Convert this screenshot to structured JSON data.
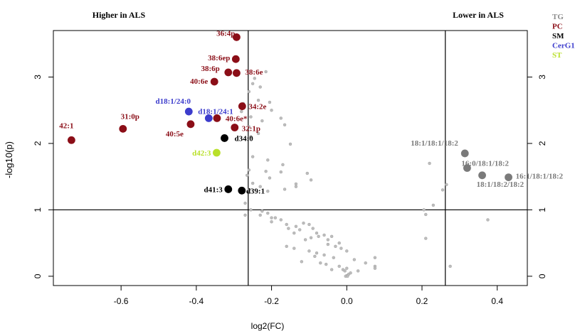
{
  "chart_data": {
    "type": "scatter",
    "title": "",
    "xlabel": "log2(FC)",
    "ylabel": "-log10(p)",
    "xlim": [
      -0.78,
      0.48
    ],
    "ylim": [
      -0.14,
      3.7
    ],
    "x_ticks": [
      {
        "v": -0.6,
        "label": "-0.6"
      },
      {
        "v": -0.4,
        "label": "-0.4"
      },
      {
        "v": -0.2,
        "label": "-0.2"
      },
      {
        "v": 0.0,
        "label": "0.0"
      },
      {
        "v": 0.2,
        "label": "0.2"
      },
      {
        "v": 0.4,
        "label": "0.4"
      }
    ],
    "y_ticks": [
      {
        "v": 0,
        "label": "0"
      },
      {
        "v": 1,
        "label": "1"
      },
      {
        "v": 2,
        "label": "2"
      },
      {
        "v": 3,
        "label": "3"
      }
    ],
    "thresholds": {
      "vertical": [
        -0.262,
        0.262
      ],
      "horizontal": [
        1.0
      ]
    },
    "region_labels": {
      "left": "Higher in ALS",
      "right": "Lower in ALS"
    },
    "grid": false,
    "legend_position": "top-right outside",
    "legend": [
      {
        "name": "TG",
        "color": "#8c8c8c"
      },
      {
        "name": "PC",
        "color": "#8b0e17"
      },
      {
        "name": "SM",
        "color": "#000000"
      },
      {
        "name": "CerG1",
        "color": "#3c3ccc"
      },
      {
        "name": "ST",
        "color": "#b9e02a"
      }
    ],
    "labeled_points": [
      {
        "x": -0.732,
        "y": 2.05,
        "label": "42:1",
        "class": "PC",
        "color": "#8b0e17"
      },
      {
        "x": -0.595,
        "y": 2.22,
        "label": "31:0p",
        "class": "PC",
        "color": "#8b0e17"
      },
      {
        "x": -0.293,
        "y": 3.6,
        "label": "36:4p",
        "class": "PC",
        "color": "#8b0e17"
      },
      {
        "x": -0.295,
        "y": 3.27,
        "label": "38:6ep",
        "class": "PC",
        "color": "#8b0e17"
      },
      {
        "x": -0.315,
        "y": 3.07,
        "label": "38:6p",
        "class": "PC",
        "color": "#8b0e17"
      },
      {
        "x": -0.293,
        "y": 3.06,
        "label": "38:6e",
        "class": "PC",
        "color": "#8b0e17"
      },
      {
        "x": -0.352,
        "y": 2.93,
        "label": "40:6e",
        "class": "PC",
        "color": "#8b0e17"
      },
      {
        "x": -0.278,
        "y": 2.56,
        "label": "34:2e",
        "class": "PC",
        "color": "#8b0e17"
      },
      {
        "x": -0.345,
        "y": 2.38,
        "label": "40:6e*",
        "class": "PC",
        "color": "#8b0e17"
      },
      {
        "x": -0.415,
        "y": 2.29,
        "label": "40:5e",
        "class": "PC",
        "color": "#8b0e17"
      },
      {
        "x": -0.298,
        "y": 2.24,
        "label": "32:1p",
        "class": "PC",
        "color": "#8b0e17"
      },
      {
        "x": -0.42,
        "y": 2.48,
        "label": "d18:1/24:0",
        "class": "CerG1",
        "color": "#3c3ccc"
      },
      {
        "x": -0.367,
        "y": 2.38,
        "label": "d18:1/24:1",
        "class": "CerG1",
        "color": "#3c3ccc"
      },
      {
        "x": -0.325,
        "y": 2.08,
        "label": "d34:0",
        "class": "SM",
        "color": "#000000"
      },
      {
        "x": -0.315,
        "y": 1.31,
        "label": "d41:3",
        "class": "SM",
        "color": "#000000"
      },
      {
        "x": -0.279,
        "y": 1.29,
        "label": "d39:1",
        "class": "SM",
        "color": "#000000"
      },
      {
        "x": -0.346,
        "y": 1.86,
        "label": "d42:3",
        "class": "ST",
        "color": "#b9e02a"
      },
      {
        "x": 0.314,
        "y": 1.85,
        "label": "18:1/18:1/18:2",
        "class": "TG",
        "color": "#7a7a7a"
      },
      {
        "x": 0.32,
        "y": 1.63,
        "label": "16:0/18:1/18:2",
        "class": "TG",
        "color": "#7a7a7a"
      },
      {
        "x": 0.36,
        "y": 1.52,
        "label": "18:1/18:2/18:2",
        "class": "TG",
        "color": "#7a7a7a"
      },
      {
        "x": 0.43,
        "y": 1.49,
        "label": "16:1/18:1/18:2",
        "class": "TG",
        "color": "#7a7a7a"
      }
    ],
    "background_points": [
      [
        -0.215,
        3.08
      ],
      [
        -0.245,
        2.98
      ],
      [
        -0.25,
        2.9
      ],
      [
        -0.23,
        2.85
      ],
      [
        -0.26,
        2.78
      ],
      [
        -0.235,
        2.65
      ],
      [
        -0.275,
        2.6
      ],
      [
        -0.28,
        2.48
      ],
      [
        -0.255,
        2.4
      ],
      [
        -0.225,
        2.34
      ],
      [
        -0.26,
        2.25
      ],
      [
        -0.235,
        2.15
      ],
      [
        -0.255,
        2.1
      ],
      [
        -0.205,
        2.62
      ],
      [
        -0.2,
        2.5
      ],
      [
        -0.175,
        2.38
      ],
      [
        -0.165,
        2.28
      ],
      [
        -0.15,
        1.99
      ],
      [
        -0.17,
        1.68
      ],
      [
        -0.21,
        1.75
      ],
      [
        -0.25,
        1.8
      ],
      [
        -0.26,
        1.6
      ],
      [
        -0.265,
        1.52
      ],
      [
        -0.215,
        1.58
      ],
      [
        -0.175,
        1.57
      ],
      [
        -0.105,
        1.55
      ],
      [
        -0.095,
        1.45
      ],
      [
        -0.205,
        1.48
      ],
      [
        -0.135,
        1.39
      ],
      [
        -0.135,
        1.35
      ],
      [
        -0.25,
        1.4
      ],
      [
        -0.26,
        1.3
      ],
      [
        -0.23,
        1.35
      ],
      [
        -0.21,
        1.28
      ],
      [
        -0.165,
        1.31
      ],
      [
        -0.27,
        1.1
      ],
      [
        -0.255,
        1.0
      ],
      [
        -0.225,
        0.98
      ],
      [
        -0.21,
        0.95
      ],
      [
        -0.19,
        0.88
      ],
      [
        -0.175,
        0.85
      ],
      [
        -0.2,
        0.82
      ],
      [
        -0.16,
        0.78
      ],
      [
        -0.155,
        0.72
      ],
      [
        -0.135,
        0.75
      ],
      [
        -0.125,
        0.7
      ],
      [
        -0.14,
        0.65
      ],
      [
        -0.2,
        0.88
      ],
      [
        -0.23,
        0.92
      ],
      [
        -0.27,
        0.92
      ],
      [
        -0.115,
        0.8
      ],
      [
        -0.1,
        0.78
      ],
      [
        -0.09,
        0.72
      ],
      [
        -0.08,
        0.65
      ],
      [
        -0.075,
        0.6
      ],
      [
        -0.095,
        0.58
      ],
      [
        -0.06,
        0.62
      ],
      [
        -0.05,
        0.55
      ],
      [
        -0.04,
        0.6
      ],
      [
        -0.05,
        0.48
      ],
      [
        -0.03,
        0.45
      ],
      [
        -0.015,
        0.42
      ],
      [
        0.0,
        0.38
      ],
      [
        -0.02,
        0.5
      ],
      [
        -0.16,
        0.45
      ],
      [
        -0.14,
        0.42
      ],
      [
        -0.1,
        0.38
      ],
      [
        -0.08,
        0.35
      ],
      [
        -0.06,
        0.32
      ],
      [
        -0.12,
        0.22
      ],
      [
        -0.07,
        0.2
      ],
      [
        -0.02,
        0.15
      ],
      [
        0.0,
        0.12
      ],
      [
        -0.005,
        0.08
      ],
      [
        0.01,
        0.05
      ],
      [
        0.005,
        0.03
      ],
      [
        0.0,
        0.01
      ],
      [
        -0.003,
        0.0
      ],
      [
        0.002,
        0.0
      ],
      [
        -0.01,
        0.1
      ],
      [
        0.02,
        0.25
      ],
      [
        0.03,
        0.08
      ],
      [
        0.05,
        0.2
      ],
      [
        0.075,
        0.28
      ],
      [
        0.075,
        0.15
      ],
      [
        0.075,
        0.12
      ],
      [
        -0.04,
        0.1
      ],
      [
        -0.055,
        0.18
      ],
      [
        -0.085,
        0.3
      ],
      [
        -0.035,
        0.28
      ],
      [
        -0.11,
        0.55
      ],
      [
        0.22,
        1.7
      ],
      [
        0.205,
        1.0
      ],
      [
        0.21,
        0.93
      ],
      [
        0.23,
        1.07
      ],
      [
        0.255,
        1.3
      ],
      [
        0.265,
        1.38
      ],
      [
        0.21,
        0.57
      ],
      [
        0.375,
        0.85
      ],
      [
        0.275,
        0.15
      ]
    ]
  }
}
